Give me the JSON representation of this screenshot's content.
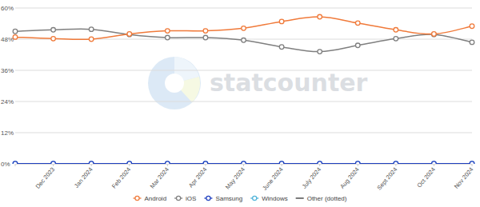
{
  "chart_data": {
    "type": "line",
    "annotations": [
      "statcounter"
    ],
    "categories": [
      null,
      "Dec 2023",
      "Jan 2024",
      "Feb 2024",
      "Mar 2024",
      "Apr 2024",
      "May 2024",
      "June 2024",
      "July 2024",
      "Aug 2024",
      "Sept 2024",
      "Oct 2024",
      "Nov 2024"
    ],
    "series": [
      {
        "name": "Android",
        "color": "#f07a3a",
        "marker": "circle",
        "line_style": "solid",
        "values": [
          48.8,
          48.2,
          48.0,
          50.0,
          51.2,
          51.2,
          52.2,
          54.8,
          56.6,
          54.2,
          51.6,
          50.0,
          53.0
        ]
      },
      {
        "name": "iOS",
        "color": "#7f7f7f",
        "marker": "circle",
        "line_style": "solid",
        "values": [
          51.0,
          51.6,
          51.8,
          49.8,
          48.6,
          48.6,
          47.6,
          45.0,
          43.2,
          45.6,
          48.2,
          49.8,
          46.8
        ]
      },
      {
        "name": "Samsung",
        "color": "#1f3fbf",
        "marker": "circle",
        "line_style": "solid",
        "values": [
          0.1,
          0.1,
          0.1,
          0.1,
          0.1,
          0.1,
          0.1,
          0.1,
          0.1,
          0.1,
          0.1,
          0.1,
          0.1
        ]
      },
      {
        "name": "Windows",
        "color": "#4fb3d9",
        "marker": "circle",
        "line_style": "solid",
        "values": [
          0.0,
          0.0,
          0.0,
          0.0,
          0.0,
          0.0,
          0.0,
          0.0,
          0.0,
          0.0,
          0.0,
          0.0,
          0.0
        ]
      },
      {
        "name": "Other (dotted)",
        "color": "#333333",
        "marker": "none",
        "line_style": "dotted",
        "values": [
          0.1,
          0.1,
          0.1,
          0.1,
          0.1,
          0.1,
          0.1,
          0.1,
          0.1,
          0.1,
          0.1,
          0.1,
          0.1
        ]
      }
    ],
    "ylim": [
      0,
      60
    ],
    "yticks": [
      {
        "value": 0,
        "label": "0%"
      },
      {
        "value": 12,
        "label": "12%"
      },
      {
        "value": 24,
        "label": "24%"
      },
      {
        "value": 36,
        "label": "36%"
      },
      {
        "value": 48,
        "label": "48%"
      },
      {
        "value": 60,
        "label": "60%"
      }
    ],
    "grid": true,
    "legend": "bottom"
  }
}
